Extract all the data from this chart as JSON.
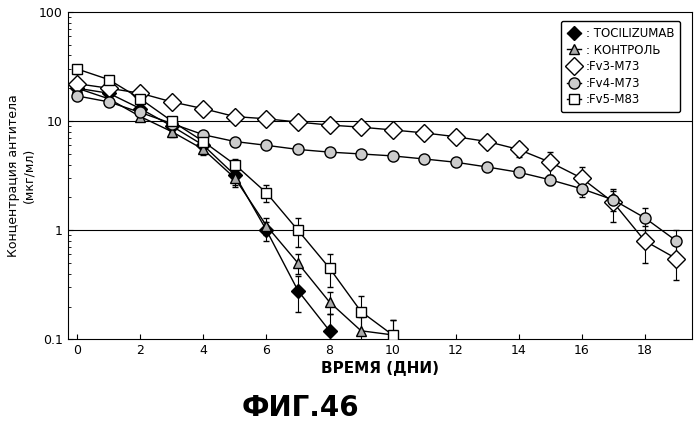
{
  "title": "ФИГ.46",
  "xlabel": "ВРЕМЯ (ДНИ)",
  "ylabel": "Концентрация антитела\n(мкг/мл)",
  "xlim": [
    -0.3,
    19.5
  ],
  "ylim": [
    0.1,
    100
  ],
  "xticks": [
    0,
    2,
    4,
    6,
    8,
    10,
    12,
    14,
    16,
    18
  ],
  "yticks": [
    0.1,
    1,
    10,
    100
  ],
  "ytick_labels": [
    "0.1",
    "1",
    "10",
    "100"
  ],
  "hlines": [
    10,
    1
  ],
  "tocilizumab": {
    "x": [
      0,
      1,
      2,
      3,
      4,
      5,
      6,
      7,
      8
    ],
    "y": [
      20,
      18,
      13,
      9,
      6.0,
      3.2,
      1.0,
      0.28,
      0.12
    ],
    "yerr_low": [
      1,
      1,
      1,
      1,
      0.8,
      0.6,
      0.2,
      0.1,
      0.05
    ],
    "yerr_high": [
      1,
      1,
      1,
      1,
      0.8,
      0.6,
      0.2,
      0.1,
      0.05
    ],
    "label": ": TOCILIZUMAB",
    "marker": "D",
    "markersize": 7,
    "markerfacecolor": "black",
    "markeredgecolor": "black",
    "color": "black"
  },
  "control": {
    "x": [
      0,
      1,
      2,
      3,
      4,
      5,
      6,
      7,
      8,
      9,
      10
    ],
    "y": [
      20,
      16,
      11,
      8.0,
      5.5,
      3.0,
      1.1,
      0.5,
      0.22,
      0.12,
      0.11
    ],
    "yerr_low": [
      1,
      1,
      1,
      0.8,
      0.6,
      0.5,
      0.2,
      0.1,
      0.05,
      0.04,
      0.04
    ],
    "yerr_high": [
      1,
      1,
      1,
      0.8,
      0.6,
      0.5,
      0.2,
      0.1,
      0.05,
      0.04,
      0.04
    ],
    "label": ": КОНТРОЛЬ",
    "marker": "^",
    "markersize": 7,
    "markerfacecolor": "#aaaaaa",
    "markeredgecolor": "black",
    "color": "black"
  },
  "fv3m73": {
    "x": [
      0,
      1,
      2,
      3,
      4,
      5,
      6,
      7,
      8,
      9,
      10,
      11,
      12,
      13,
      14,
      15,
      16,
      17,
      18,
      19
    ],
    "y": [
      22,
      20,
      18,
      15,
      13,
      11,
      10.5,
      9.8,
      9.2,
      8.8,
      8.3,
      7.8,
      7.2,
      6.5,
      5.5,
      4.2,
      3.0,
      1.8,
      0.8,
      0.55
    ],
    "yerr_low": [
      1,
      1,
      1,
      1,
      0.8,
      0.8,
      0.5,
      0.5,
      0.5,
      0.5,
      0.5,
      0.5,
      0.5,
      0.5,
      0.8,
      1.0,
      0.8,
      0.6,
      0.3,
      0.2
    ],
    "yerr_high": [
      1,
      1,
      1,
      1,
      0.8,
      0.8,
      0.5,
      0.5,
      0.5,
      0.5,
      0.5,
      0.5,
      0.5,
      0.5,
      0.8,
      1.0,
      0.8,
      0.6,
      0.3,
      0.2
    ],
    "label": ":Fv3-M73",
    "marker": "D",
    "markersize": 9,
    "markerfacecolor": "white",
    "markeredgecolor": "black",
    "color": "black"
  },
  "fv4m73": {
    "x": [
      0,
      1,
      2,
      3,
      4,
      5,
      6,
      7,
      8,
      9,
      10,
      11,
      12,
      13,
      14,
      15,
      16,
      17,
      18,
      19
    ],
    "y": [
      17,
      15,
      12,
      9.5,
      7.5,
      6.5,
      6.0,
      5.5,
      5.2,
      5.0,
      4.8,
      4.5,
      4.2,
      3.8,
      3.4,
      2.9,
      2.4,
      1.9,
      1.3,
      0.8
    ],
    "yerr_low": [
      1,
      0.8,
      0.8,
      0.6,
      0.5,
      0.4,
      0.4,
      0.3,
      0.3,
      0.3,
      0.3,
      0.3,
      0.3,
      0.3,
      0.3,
      0.3,
      0.4,
      0.4,
      0.3,
      0.2
    ],
    "yerr_high": [
      1,
      0.8,
      0.8,
      0.6,
      0.5,
      0.4,
      0.4,
      0.3,
      0.3,
      0.3,
      0.3,
      0.3,
      0.3,
      0.3,
      0.3,
      0.3,
      0.4,
      0.4,
      0.3,
      0.2
    ],
    "label": ":Fv4-M73",
    "marker": "o",
    "markersize": 8,
    "markerfacecolor": "#cccccc",
    "markeredgecolor": "black",
    "color": "black"
  },
  "fv5m83": {
    "x": [
      0,
      1,
      2,
      3,
      4,
      5,
      6,
      7,
      8,
      9,
      10
    ],
    "y": [
      30,
      24,
      16,
      10,
      6.5,
      4.0,
      2.2,
      1.0,
      0.45,
      0.18,
      0.11
    ],
    "yerr_low": [
      3,
      2,
      2,
      1,
      0.8,
      0.5,
      0.4,
      0.3,
      0.15,
      0.07,
      0.04
    ],
    "yerr_high": [
      3,
      2,
      2,
      1,
      0.8,
      0.5,
      0.4,
      0.3,
      0.15,
      0.07,
      0.04
    ],
    "label": ":Fv5-M83",
    "marker": "s",
    "markersize": 7,
    "markerfacecolor": "white",
    "markeredgecolor": "black",
    "color": "black"
  },
  "bg_color": "#ffffff"
}
